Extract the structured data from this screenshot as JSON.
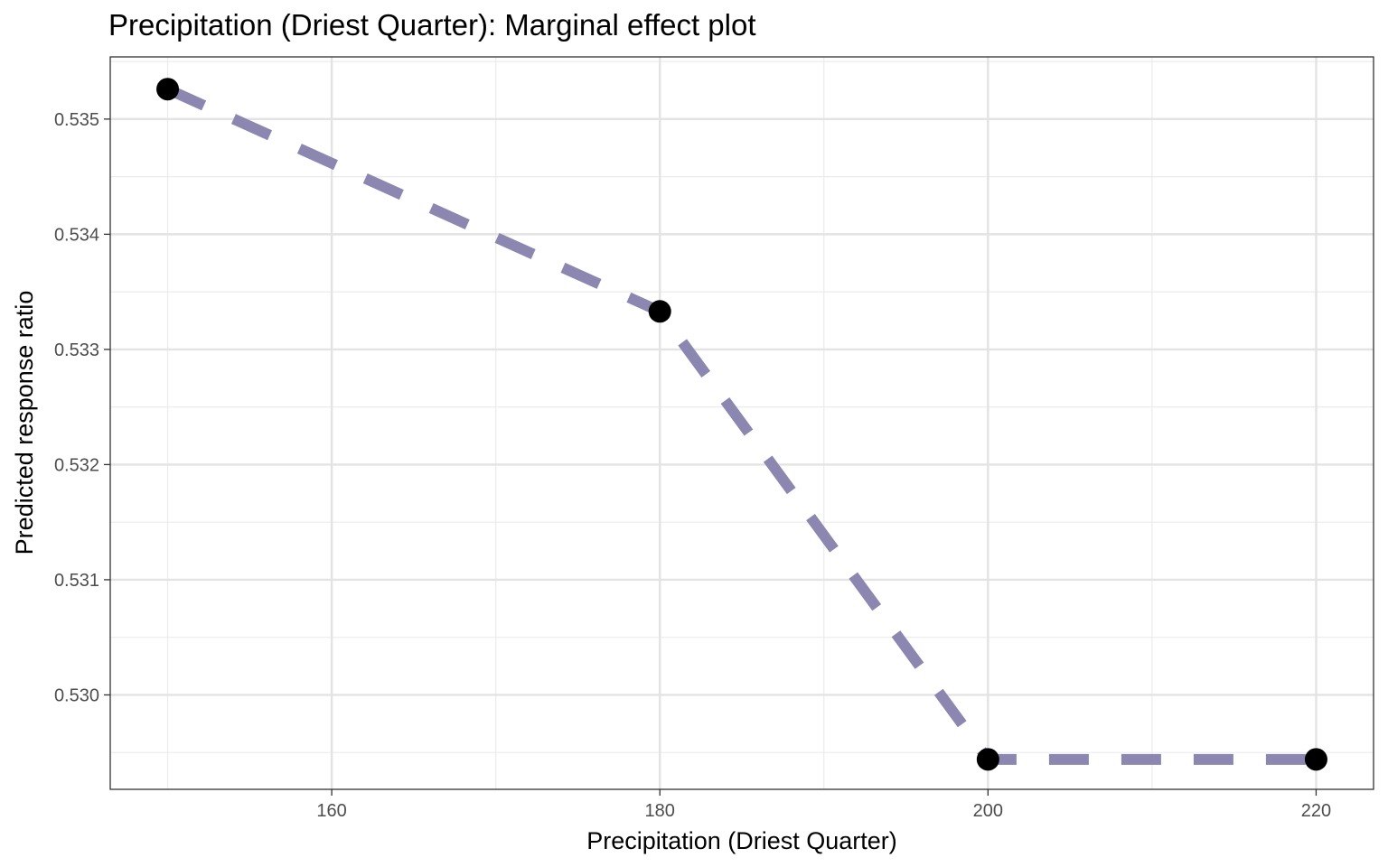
{
  "chart_data": {
    "type": "line",
    "title": "Precipitation (Driest Quarter): Marginal effect plot",
    "xlabel": "Precipitation (Driest Quarter)",
    "ylabel": "Predicted response ratio",
    "x_ticks": [
      160,
      180,
      200,
      220
    ],
    "y_ticks": [
      "0.530",
      "0.531",
      "0.532",
      "0.533",
      "0.534",
      "0.535"
    ],
    "xlim": [
      146.5,
      223.5
    ],
    "ylim": [
      0.52918,
      0.53554
    ],
    "grid": true,
    "series": [
      {
        "x": [
          150,
          180,
          200,
          220
        ],
        "y": [
          0.53526,
          0.53333,
          0.52944,
          0.52944
        ],
        "line_color": "#8b87b0",
        "line_style": "dashed",
        "point_color": "#000000"
      }
    ]
  }
}
